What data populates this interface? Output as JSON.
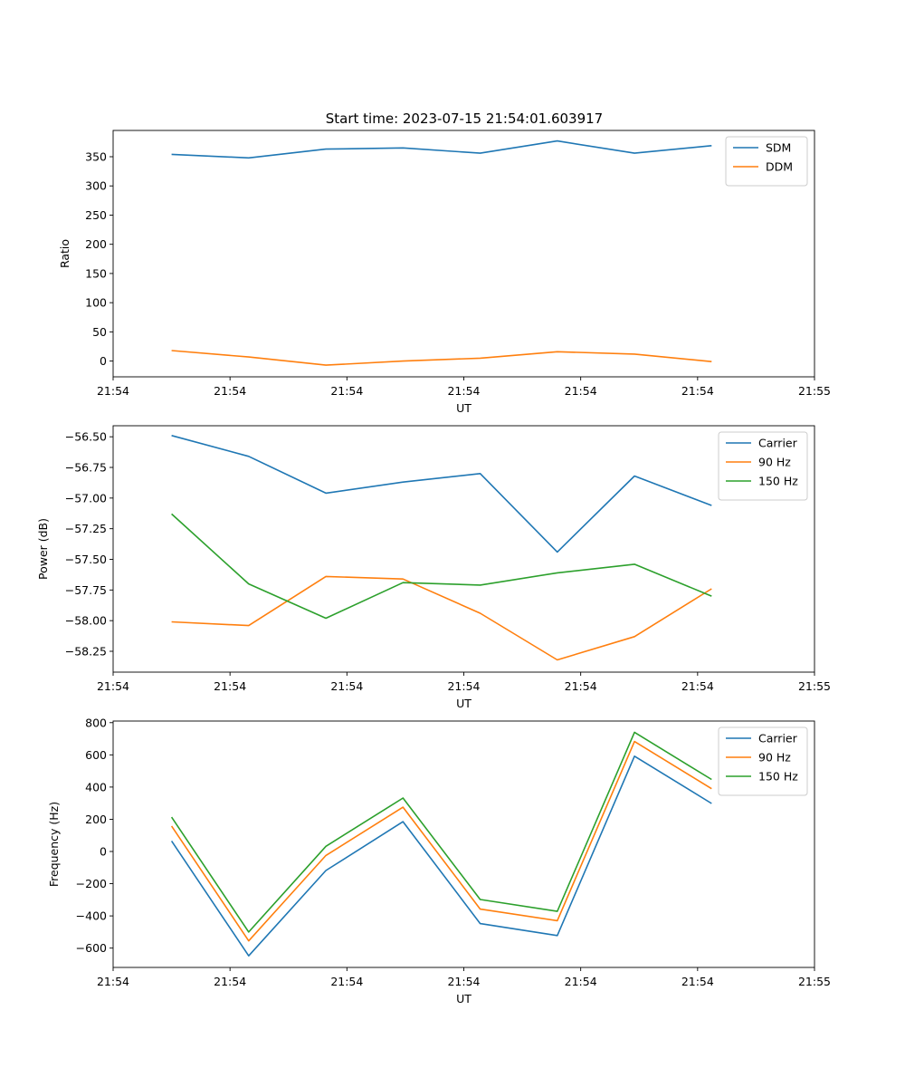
{
  "figure": {
    "title": "Start time: 2023-07-15 21:54:01.603917"
  },
  "chart_data": [
    {
      "type": "line",
      "title": "Start time: 2023-07-15 21:54:01.603917",
      "xlabel": "UT",
      "ylabel": "Ratio",
      "x": [
        1.0,
        1.66,
        2.32,
        2.98,
        3.64,
        4.3,
        4.96,
        5.62
      ],
      "xlim": [
        0.5,
        6.5
      ],
      "xticks": [
        0.5,
        1.5,
        2.5,
        3.5,
        4.5,
        5.5,
        6.5
      ],
      "xticklabels": [
        "21:54",
        "21:54",
        "21:54",
        "21:54",
        "21:54",
        "21:54",
        "21:55"
      ],
      "ylim": [
        -27,
        395
      ],
      "yticks": [
        0,
        50,
        100,
        150,
        200,
        250,
        300,
        350
      ],
      "ytick_format": "int",
      "legend": "top-right",
      "series": [
        {
          "name": "SDM",
          "color": "#1f77b4",
          "values": [
            354,
            348,
            363,
            365,
            356,
            377,
            356,
            369
          ]
        },
        {
          "name": "DDM",
          "color": "#ff7f0e",
          "values": [
            18,
            7,
            -7,
            0,
            5,
            16,
            12,
            -1
          ]
        }
      ]
    },
    {
      "type": "line",
      "title": "",
      "xlabel": "UT",
      "ylabel": "Power (dB)",
      "x": [
        1.0,
        1.66,
        2.32,
        2.98,
        3.64,
        4.3,
        4.96,
        5.62
      ],
      "xlim": [
        0.5,
        6.5
      ],
      "xticks": [
        0.5,
        1.5,
        2.5,
        3.5,
        4.5,
        5.5,
        6.5
      ],
      "xticklabels": [
        "21:54",
        "21:54",
        "21:54",
        "21:54",
        "21:54",
        "21:54",
        "21:55"
      ],
      "ylim": [
        -58.42,
        -56.41
      ],
      "yticks": [
        -56.5,
        -56.75,
        -57.0,
        -57.25,
        -57.5,
        -57.75,
        -58.0,
        -58.25
      ],
      "ytick_format": "fixed2",
      "legend": "top-right",
      "series": [
        {
          "name": "Carrier",
          "color": "#1f77b4",
          "values": [
            -56.49,
            -56.66,
            -56.96,
            -56.87,
            -56.8,
            -57.44,
            -56.82,
            -57.06
          ]
        },
        {
          "name": "90 Hz",
          "color": "#ff7f0e",
          "values": [
            -58.01,
            -58.04,
            -57.64,
            -57.66,
            -57.94,
            -58.32,
            -58.13,
            -57.74
          ]
        },
        {
          "name": "150 Hz",
          "color": "#2ca02c",
          "values": [
            -57.13,
            -57.7,
            -57.98,
            -57.69,
            -57.71,
            -57.61,
            -57.54,
            -57.8
          ]
        }
      ]
    },
    {
      "type": "line",
      "title": "",
      "xlabel": "UT",
      "ylabel": "Frequency (Hz)",
      "x": [
        1.0,
        1.66,
        2.32,
        2.98,
        3.64,
        4.3,
        4.96,
        5.62
      ],
      "xlim": [
        0.5,
        6.5
      ],
      "xticks": [
        0.5,
        1.5,
        2.5,
        3.5,
        4.5,
        5.5,
        6.5
      ],
      "xticklabels": [
        "21:54",
        "21:54",
        "21:54",
        "21:54",
        "21:54",
        "21:54",
        "21:55"
      ],
      "ylim": [
        -720,
        810
      ],
      "yticks": [
        -600,
        -400,
        -200,
        0,
        200,
        400,
        600,
        800
      ],
      "ytick_format": "int",
      "legend": "top-right",
      "series": [
        {
          "name": "Carrier",
          "color": "#1f77b4",
          "values": [
            65,
            -648,
            -118,
            185,
            -448,
            -522,
            592,
            298
          ]
        },
        {
          "name": "90 Hz",
          "color": "#ff7f0e",
          "values": [
            158,
            -555,
            -25,
            275,
            -358,
            -430,
            683,
            390
          ]
        },
        {
          "name": "150 Hz",
          "color": "#2ca02c",
          "values": [
            213,
            -500,
            32,
            332,
            -298,
            -372,
            740,
            447
          ]
        }
      ]
    }
  ]
}
